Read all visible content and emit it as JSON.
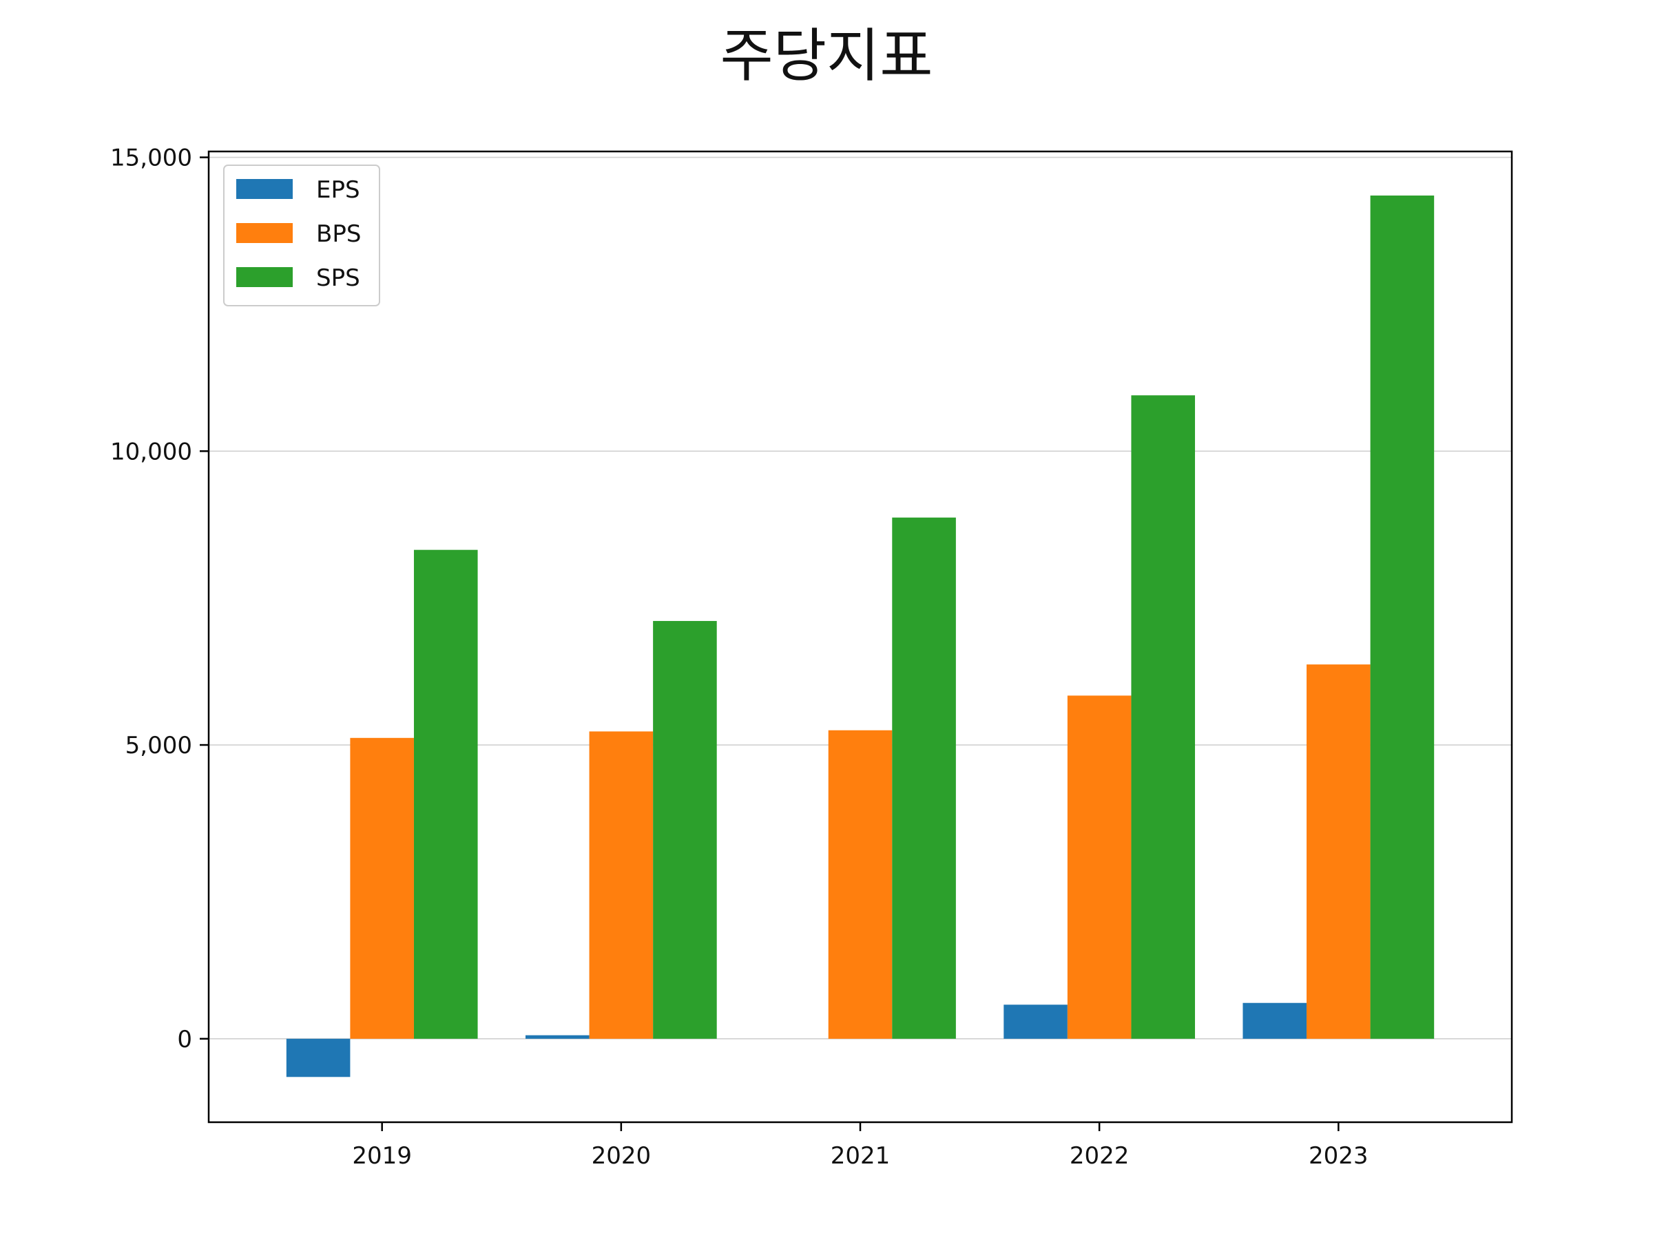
{
  "chart_data": {
    "type": "bar",
    "title": "주당지표",
    "xlabel": "",
    "ylabel": "",
    "categories": [
      "2019",
      "2020",
      "2021",
      "2022",
      "2023"
    ],
    "series": [
      {
        "name": "EPS",
        "color": "#1f77b4",
        "values": [
          -650,
          60,
          0,
          580,
          610
        ]
      },
      {
        "name": "BPS",
        "color": "#ff7f0e",
        "values": [
          5120,
          5230,
          5250,
          5840,
          6370
        ]
      },
      {
        "name": "SPS",
        "color": "#2ca02c",
        "values": [
          8320,
          7110,
          8870,
          10950,
          14350
        ]
      }
    ],
    "yticks": [
      0,
      5000,
      10000,
      15000
    ],
    "ytick_labels": [
      "0",
      "5,000",
      "10,000",
      "15,000"
    ],
    "ylim": [
      -1420,
      15100
    ],
    "grid": "y",
    "legend": "top-left"
  }
}
